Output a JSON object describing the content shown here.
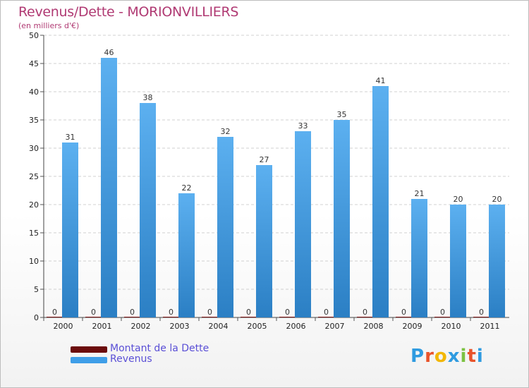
{
  "chart_data": {
    "type": "bar",
    "title": "Revenus/Dette - MORIONVILLIERS",
    "subtitle": "(en milliers d'€)",
    "categories": [
      "2000",
      "2001",
      "2002",
      "2003",
      "2004",
      "2005",
      "2006",
      "2007",
      "2008",
      "2009",
      "2010",
      "2011"
    ],
    "series": [
      {
        "name": "Montant de la Dette",
        "color": "#7a1010",
        "values": [
          0,
          0,
          0,
          0,
          0,
          0,
          0,
          0,
          0,
          0,
          0,
          0
        ]
      },
      {
        "name": "Revenus",
        "color": "#3f9ee8",
        "values": [
          31,
          46,
          38,
          22,
          32,
          27,
          33,
          35,
          41,
          21,
          20,
          20
        ]
      }
    ],
    "ylim": [
      0,
      50
    ],
    "yticks": [
      0,
      5,
      10,
      15,
      20,
      25,
      30,
      35,
      40,
      45,
      50
    ],
    "legend": "bottom-left"
  },
  "logo": {
    "letters": [
      "P",
      "r",
      "o",
      "x",
      "i",
      "t",
      "i"
    ],
    "colors": [
      "#2f9be0",
      "#e8532a",
      "#f2b705",
      "#2f9be0",
      "#7cc242",
      "#e8532a",
      "#2f9be0"
    ]
  }
}
